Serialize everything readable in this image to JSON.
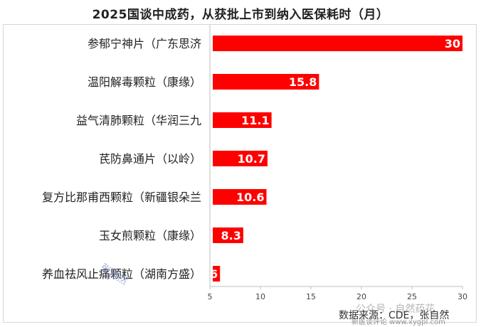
{
  "chart_data": {
    "type": "bar",
    "orientation": "horizontal",
    "title": "2025国谈中成药，从获批上市到纳入医保耗时（月）",
    "categories": [
      "参郁宁神片（广东思济",
      "温阳解毒颗粒（康缘）",
      "益气清肺颗粒（华润三九",
      "芪防鼻通片（以岭）",
      "复方比那甫西颗粒（新疆银朵兰",
      "玉女煎颗粒（康缘）",
      "养血祛风止痛颗粒（湖南方盛）"
    ],
    "values": [
      30,
      15.8,
      11.1,
      10.7,
      10.6,
      8.3,
      6
    ],
    "value_labels": [
      "30",
      "15.8",
      "11.1",
      "10.7",
      "10.6",
      "8.3",
      "6"
    ],
    "xlim": [
      5,
      30
    ],
    "xticks": [
      5,
      10,
      15,
      20,
      25,
      30
    ],
    "xlabel": "",
    "ylabel": "",
    "grid": false,
    "bar_color": "#ff0000"
  },
  "source": "数据来源：CDE，张自然",
  "watermarks": {
    "author": "张自然",
    "account": "公众号 · 自然药花",
    "url": "新医谈评论 www.xygpl.com"
  }
}
